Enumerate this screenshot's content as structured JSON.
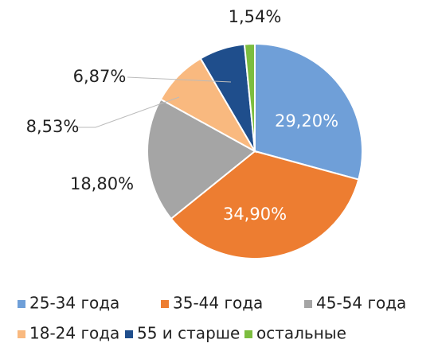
{
  "chart_data": {
    "type": "pie",
    "categories": [
      "25-34 года",
      "35-44 года",
      "45-54 года",
      "18-24 года",
      "55 и старше",
      "остальные"
    ],
    "values": [
      29.2,
      34.9,
      18.8,
      8.53,
      6.87,
      1.54
    ],
    "value_labels": [
      "29,20%",
      "34,90%",
      "18,80%",
      "8,53%",
      "6,87%",
      "1,54%"
    ],
    "colors": [
      "#6f9fd8",
      "#ed7d31",
      "#a5a5a5",
      "#f9b97f",
      "#1f4e8c",
      "#7cbd3f"
    ],
    "legend": "bottom"
  }
}
